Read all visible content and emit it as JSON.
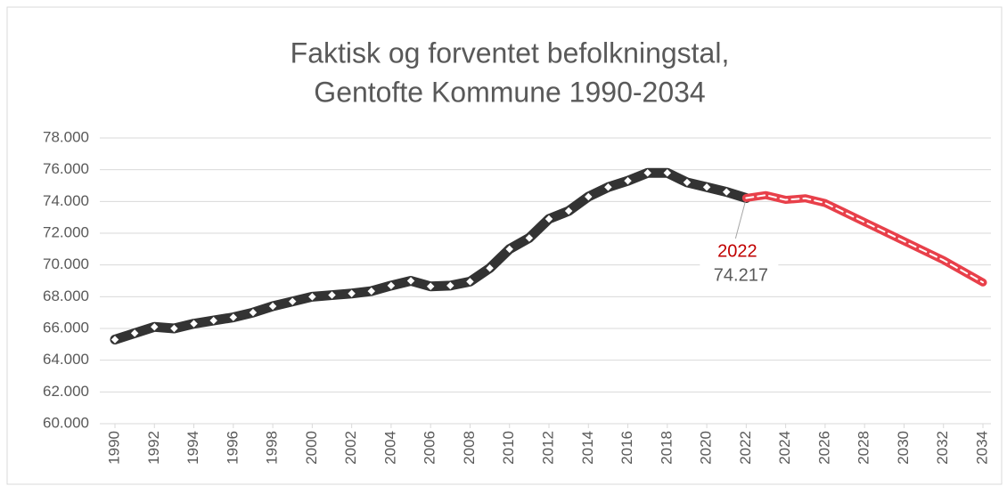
{
  "chart_data": {
    "type": "line",
    "title": [
      "Faktisk og forventet befolkningstal,",
      "Gentofte Kommune 1990-2034"
    ],
    "x": [
      1990,
      1991,
      1992,
      1993,
      1994,
      1995,
      1996,
      1997,
      1998,
      1999,
      2000,
      2001,
      2002,
      2003,
      2004,
      2005,
      2006,
      2007,
      2008,
      2009,
      2010,
      2011,
      2012,
      2013,
      2014,
      2015,
      2016,
      2017,
      2018,
      2019,
      2020,
      2021,
      2022,
      2023,
      2024,
      2025,
      2026,
      2027,
      2028,
      2029,
      2030,
      2031,
      2032,
      2033,
      2034
    ],
    "series": [
      {
        "color": "#333333",
        "values": [
          65300,
          65700,
          66100,
          66000,
          66300,
          66500,
          66700,
          67000,
          67400,
          67700,
          68000,
          68100,
          68200,
          68350,
          68700,
          69000,
          68650,
          68700,
          68950,
          69800,
          71000,
          71700,
          72900,
          73400,
          74300,
          74900,
          75300,
          75800,
          75800,
          75200,
          74900,
          74600,
          74217,
          null,
          null,
          null,
          null,
          null,
          null,
          null,
          null,
          null,
          null,
          null,
          null
        ]
      },
      {
        "color": "#e8404a",
        "values": [
          null,
          null,
          null,
          null,
          null,
          null,
          null,
          null,
          null,
          null,
          null,
          null,
          null,
          null,
          null,
          null,
          null,
          null,
          null,
          null,
          null,
          null,
          null,
          null,
          null,
          null,
          null,
          null,
          null,
          null,
          null,
          null,
          74217,
          74400,
          74100,
          74200,
          73900,
          73300,
          72700,
          72100,
          71500,
          70900,
          70300,
          69600,
          68900
        ]
      }
    ],
    "xlim": [
      1990,
      2034
    ],
    "xticks": [
      1990,
      1992,
      1994,
      1996,
      1998,
      2000,
      2002,
      2004,
      2006,
      2008,
      2010,
      2012,
      2014,
      2016,
      2018,
      2020,
      2022,
      2024,
      2026,
      2028,
      2030,
      2032,
      2034
    ],
    "ylim": [
      60000,
      78000
    ],
    "yticks": [
      {
        "value": 60000,
        "label": "60.000"
      },
      {
        "value": 62000,
        "label": "62.000"
      },
      {
        "value": 64000,
        "label": "64.000"
      },
      {
        "value": 66000,
        "label": "66.000"
      },
      {
        "value": 68000,
        "label": "68.000"
      },
      {
        "value": 70000,
        "label": "70.000"
      },
      {
        "value": 72000,
        "label": "72.000"
      },
      {
        "value": 74000,
        "label": "74.000"
      },
      {
        "value": 76000,
        "label": "76.000"
      },
      {
        "value": 78000,
        "label": "78.000"
      }
    ],
    "grid": true,
    "annotation": {
      "text": "2022",
      "x": 2022,
      "value": 74217,
      "value_label": "74.217",
      "color": "#c00000"
    }
  }
}
